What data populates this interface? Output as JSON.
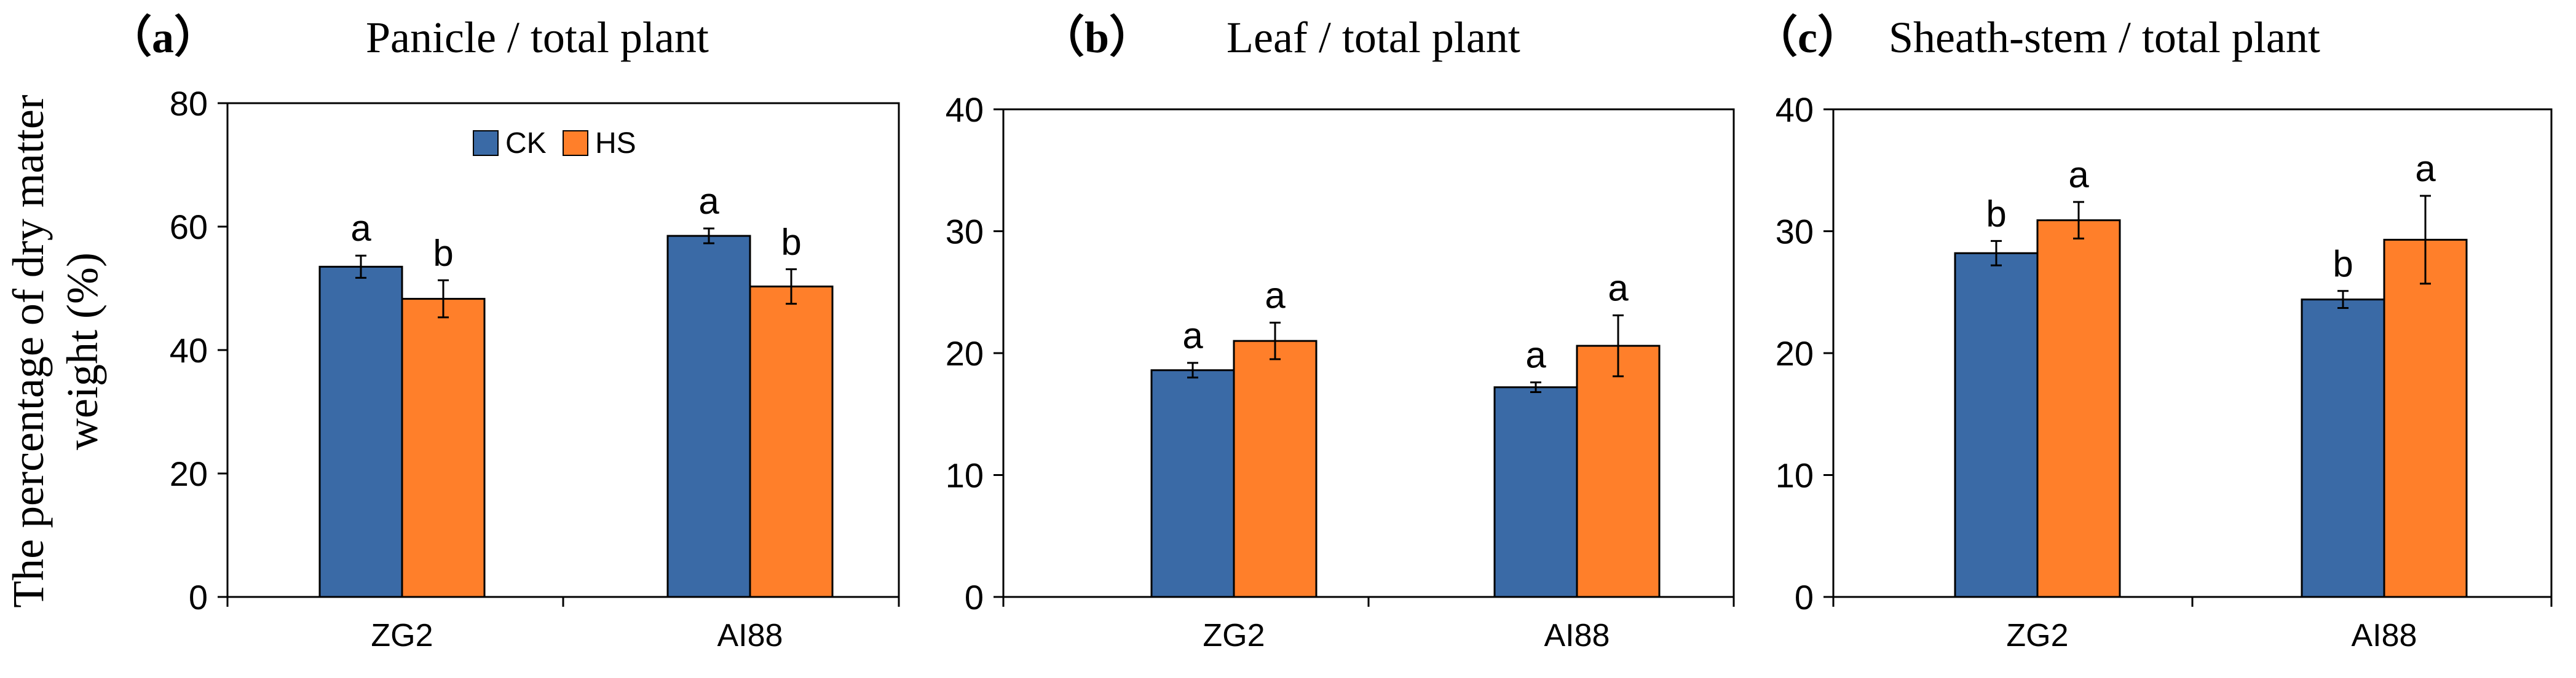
{
  "figure": {
    "ylabel_line1": "The percentage of dry matter",
    "ylabel_line2": "weight (%)"
  },
  "colors": {
    "CK": "#3A6AA6",
    "HS": "#FF7F2A",
    "axis": "#000000",
    "error": "#000000"
  },
  "chart_data": [
    {
      "type": "bar",
      "panel_label": "（a）",
      "title": "Panicle / total plant",
      "categories": [
        "ZG2",
        "AI88"
      ],
      "series": [
        {
          "name": "CK",
          "values": [
            53.5,
            58.5
          ],
          "errors": [
            1.8,
            1.2
          ],
          "letters": [
            "a",
            "a"
          ]
        },
        {
          "name": "HS",
          "values": [
            48.3,
            50.3
          ],
          "errors": [
            3.0,
            2.8
          ],
          "letters": [
            "b",
            "b"
          ]
        }
      ],
      "ylim": [
        0,
        80
      ],
      "yticks": [
        0,
        20,
        40,
        60,
        80
      ],
      "legend": "top-center",
      "ylabel": "The percentage of dry matter weight (%)"
    },
    {
      "type": "bar",
      "panel_label": "（b）",
      "title": "Leaf / total plant",
      "categories": [
        "ZG2",
        "AI88"
      ],
      "series": [
        {
          "name": "CK",
          "values": [
            18.6,
            17.2
          ],
          "errors": [
            0.6,
            0.4
          ],
          "letters": [
            "a",
            "a"
          ]
        },
        {
          "name": "HS",
          "values": [
            21.0,
            20.6
          ],
          "errors": [
            1.5,
            2.5
          ],
          "letters": [
            "a",
            "a"
          ]
        }
      ],
      "ylim": [
        0,
        40
      ],
      "yticks": [
        0,
        10,
        20,
        30,
        40
      ],
      "legend": "none"
    },
    {
      "type": "bar",
      "panel_label": "（c）",
      "title": "Sheath-stem / total plant",
      "categories": [
        "ZG2",
        "AI88"
      ],
      "series": [
        {
          "name": "CK",
          "values": [
            28.2,
            24.4
          ],
          "errors": [
            1.0,
            0.7
          ],
          "letters": [
            "b",
            "b"
          ]
        },
        {
          "name": "HS",
          "values": [
            30.9,
            29.3
          ],
          "errors": [
            1.5,
            3.6
          ],
          "letters": [
            "a",
            "a"
          ]
        }
      ],
      "ylim": [
        0,
        40
      ],
      "yticks": [
        0,
        10,
        20,
        30,
        40
      ],
      "legend": "none"
    }
  ]
}
